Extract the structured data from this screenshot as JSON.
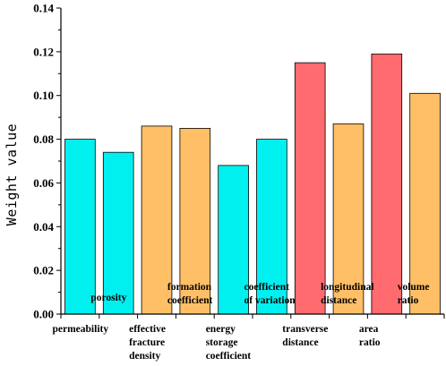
{
  "chart_data": {
    "type": "bar",
    "title": "",
    "xlabel": "",
    "ylabel": "Weight value",
    "ylim": [
      0,
      0.14
    ],
    "yticks": [
      "0.00",
      "0.02",
      "0.04",
      "0.06",
      "0.08",
      "0.10",
      "0.12",
      "0.14"
    ],
    "grid": false,
    "categories": [
      {
        "lines": [
          "permeability"
        ],
        "row": "low"
      },
      {
        "lines": [
          "porosity"
        ],
        "row": "high"
      },
      {
        "lines": [
          "effective",
          "fracture",
          "density"
        ],
        "row": "low"
      },
      {
        "lines": [
          "formation",
          "coefficient"
        ],
        "row": "high"
      },
      {
        "lines": [
          "energy",
          "storage",
          "coefficient"
        ],
        "row": "low"
      },
      {
        "lines": [
          "coefficient",
          "of variation"
        ],
        "row": "high"
      },
      {
        "lines": [
          "transverse",
          "distance"
        ],
        "row": "low"
      },
      {
        "lines": [
          "longitudinal",
          "distance"
        ],
        "row": "high"
      },
      {
        "lines": [
          "area",
          "ratio"
        ],
        "row": "low"
      },
      {
        "lines": [
          "volume",
          "ratio"
        ],
        "row": "high"
      }
    ],
    "values": [
      0.08,
      0.074,
      0.086,
      0.085,
      0.068,
      0.08,
      0.115,
      0.087,
      0.119,
      0.101
    ],
    "bar_colors": [
      "#00f0f0",
      "#00f0f0",
      "#ffbf66",
      "#ffbf66",
      "#00f0f0",
      "#00f0f0",
      "#ff6b6e",
      "#ffbf66",
      "#ff6b6e",
      "#ffbf66"
    ]
  }
}
